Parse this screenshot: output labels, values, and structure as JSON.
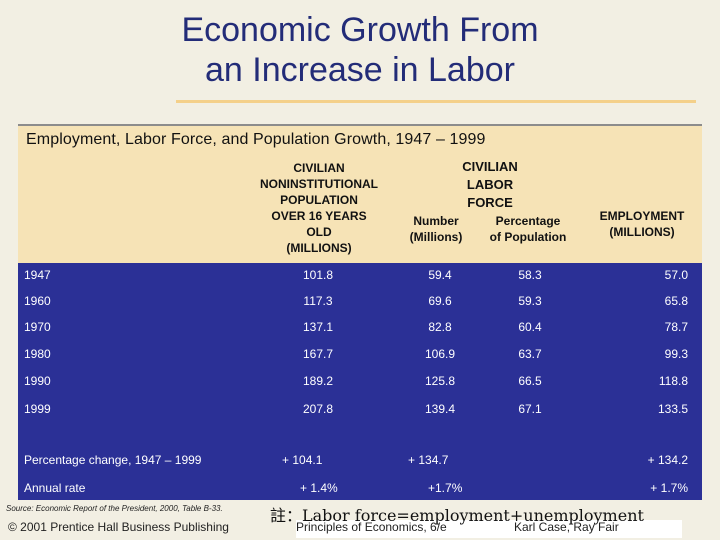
{
  "slide": {
    "title_line1": "Economic Growth From",
    "title_line2": "an Increase in Labor"
  },
  "table": {
    "title": "Employment, Labor Force, and Population Growth, 1947 – 1999",
    "headers": {
      "population": [
        "CIVILIAN",
        "NONINSTITUTIONAL",
        "POPULATION",
        "OVER 16 YEARS",
        "OLD",
        "(MILLIONS)"
      ],
      "labor_force_group": [
        "CIVILIAN",
        "LABOR",
        "FORCE"
      ],
      "number": [
        "Number",
        "(Millions)"
      ],
      "percentage": [
        "Percentage",
        "of Population"
      ],
      "employment": [
        "EMPLOYMENT",
        "(MILLIONS)"
      ]
    },
    "rows": [
      {
        "year": "1947",
        "population": "101.8",
        "number": "59.4",
        "percentage": "58.3",
        "employment": "57.0"
      },
      {
        "year": "1960",
        "population": "117.3",
        "number": "69.6",
        "percentage": "59.3",
        "employment": "65.8"
      },
      {
        "year": "1970",
        "population": "137.1",
        "number": "82.8",
        "percentage": "60.4",
        "employment": "78.7"
      },
      {
        "year": "1980",
        "population": "167.7",
        "number": "106.9",
        "percentage": "63.7",
        "employment": "99.3"
      },
      {
        "year": "1990",
        "population": "189.2",
        "number": "125.8",
        "percentage": "66.5",
        "employment": "118.8"
      },
      {
        "year": "1999",
        "population": "207.8",
        "number": "139.4",
        "percentage": "67.1",
        "employment": "133.5"
      }
    ],
    "pct_change": {
      "label": "Percentage change, 1947 – 1999",
      "population": "+ 104.1",
      "number": "+ 134.7",
      "employment": "+ 134.2"
    },
    "annual_rate": {
      "label": "Annual rate",
      "population": "+ 1.4%",
      "number": "+1.7%",
      "employment": "+ 1.7%"
    }
  },
  "footer": {
    "source": "Source: Economic Report of the President, 2000, Table B-33.",
    "copyright": "© 2001 Prentice Hall Business Publishing",
    "note": "註：Labor force=employment+unemployment",
    "book": "Principles of Economics, 6/e",
    "authors": "Karl Case, Ray Fair"
  },
  "colors": {
    "table_body": "#2b3096",
    "header_band": "#f6e3b6",
    "title": "#232c78",
    "rule": "#f4d08a"
  }
}
